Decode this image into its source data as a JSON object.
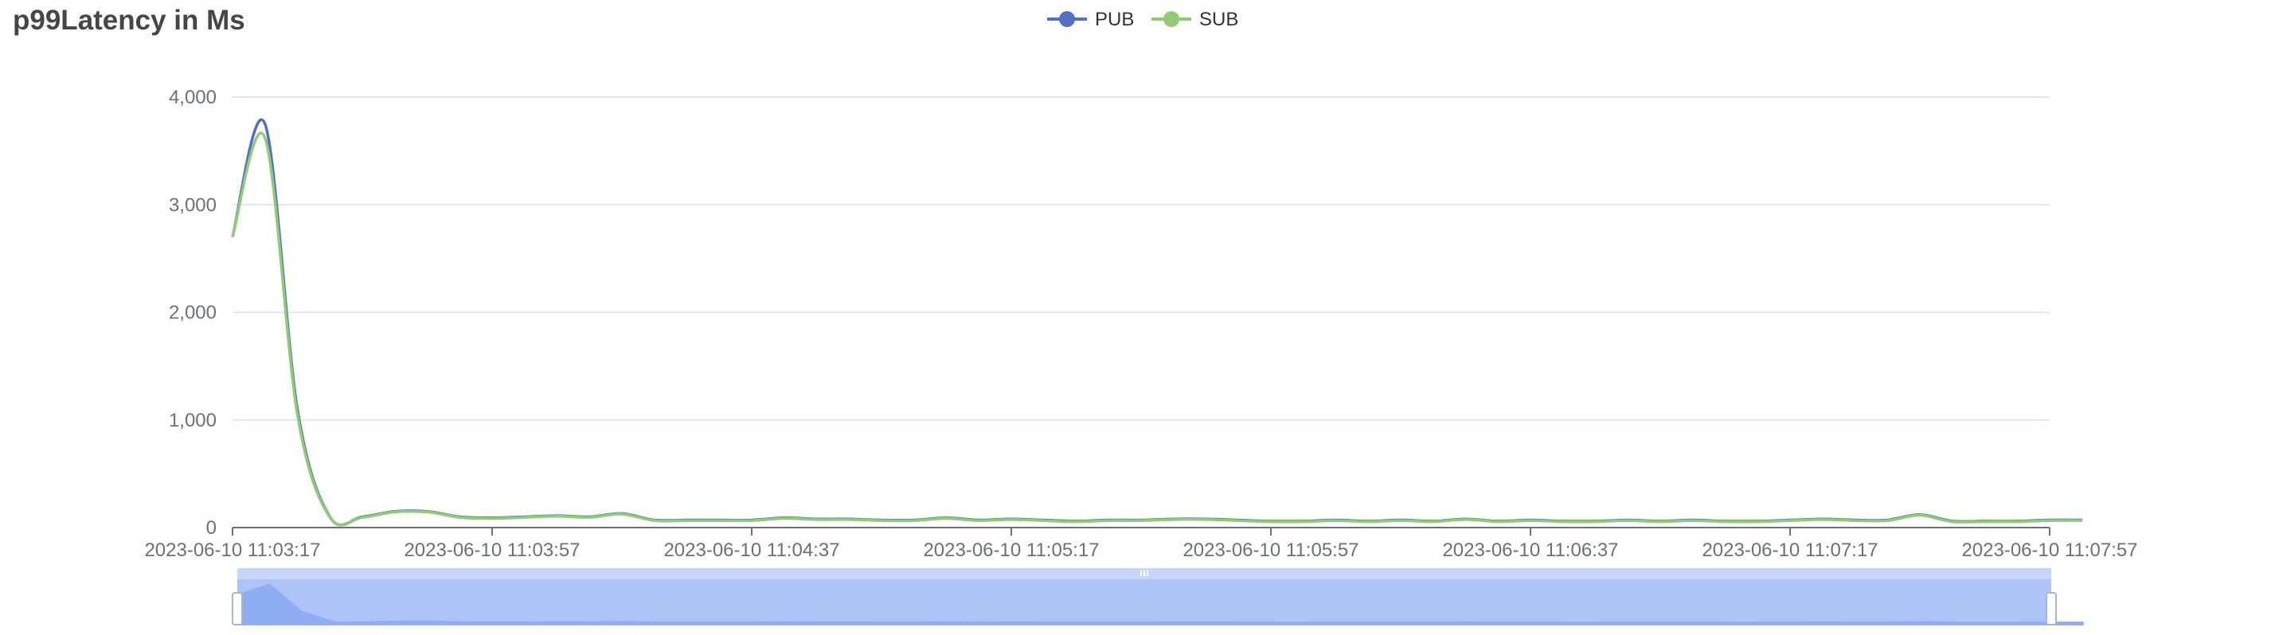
{
  "title": "p99Latency in Ms",
  "colors": {
    "PUB": "#5470c6",
    "SUB": "#91cc75",
    "grid": "#e0e6f1",
    "axis": "#6e7079",
    "zoom_fill": "#aec4f7"
  },
  "chart_data": {
    "type": "line",
    "title": "p99Latency in Ms",
    "xlabel": "",
    "ylabel": "",
    "ylim": [
      0,
      4000
    ],
    "y_ticks": [
      "0",
      "1,000",
      "2,000",
      "3,000",
      "4,000"
    ],
    "x_range": [
      "2023-06-10 11:03:17",
      "2023-06-10 11:07:57"
    ],
    "x_tick_labels": [
      "2023-06-10 11:03:17",
      "2023-06-10 11:03:57",
      "2023-06-10 11:04:37",
      "2023-06-10 11:05:17",
      "2023-06-10 11:05:57",
      "2023-06-10 11:06:37",
      "2023-06-10 11:07:17",
      "2023-06-10 11:07:57"
    ],
    "legend": {
      "position": "top-center",
      "entries": [
        "PUB",
        "SUB"
      ]
    },
    "grid": true,
    "data_zoom": {
      "start": 0,
      "end": 100
    },
    "x": [
      "11:03:17",
      "11:03:22",
      "11:03:27",
      "11:03:32",
      "11:03:37",
      "11:03:42",
      "11:03:47",
      "11:03:52",
      "11:03:57",
      "11:04:02",
      "11:04:07",
      "11:04:12",
      "11:04:17",
      "11:04:22",
      "11:04:27",
      "11:04:32",
      "11:04:37",
      "11:04:42",
      "11:04:47",
      "11:04:52",
      "11:04:57",
      "11:05:02",
      "11:05:07",
      "11:05:12",
      "11:05:17",
      "11:05:22",
      "11:05:27",
      "11:05:32",
      "11:05:37",
      "11:05:42",
      "11:05:47",
      "11:05:52",
      "11:05:57",
      "11:06:02",
      "11:06:07",
      "11:06:12",
      "11:06:17",
      "11:06:22",
      "11:06:27",
      "11:06:32",
      "11:06:37",
      "11:06:42",
      "11:06:47",
      "11:06:52",
      "11:06:57",
      "11:07:02",
      "11:07:07",
      "11:07:12",
      "11:07:17",
      "11:07:22",
      "11:07:27",
      "11:07:32",
      "11:07:37",
      "11:07:42",
      "11:07:47",
      "11:07:52",
      "11:07:57",
      "11:08:02"
    ],
    "series": [
      {
        "name": "PUB",
        "values": [
          2700,
          3750,
          1100,
          100,
          100,
          150,
          150,
          100,
          90,
          100,
          110,
          100,
          130,
          70,
          70,
          70,
          70,
          90,
          80,
          80,
          70,
          70,
          90,
          70,
          80,
          70,
          60,
          70,
          70,
          80,
          80,
          70,
          60,
          60,
          70,
          60,
          70,
          60,
          80,
          60,
          70,
          60,
          60,
          70,
          60,
          70,
          60,
          60,
          70,
          80,
          70,
          70,
          120,
          60,
          60,
          60,
          70,
          70
        ]
      },
      {
        "name": "SUB",
        "values": [
          2700,
          3620,
          1050,
          95,
          95,
          145,
          145,
          95,
          85,
          95,
          105,
          95,
          125,
          65,
          65,
          65,
          65,
          85,
          75,
          75,
          65,
          65,
          85,
          65,
          75,
          65,
          55,
          65,
          65,
          75,
          75,
          65,
          55,
          55,
          65,
          55,
          65,
          55,
          75,
          55,
          65,
          55,
          55,
          65,
          55,
          65,
          55,
          55,
          65,
          75,
          65,
          65,
          115,
          55,
          55,
          55,
          65,
          65
        ]
      }
    ]
  }
}
